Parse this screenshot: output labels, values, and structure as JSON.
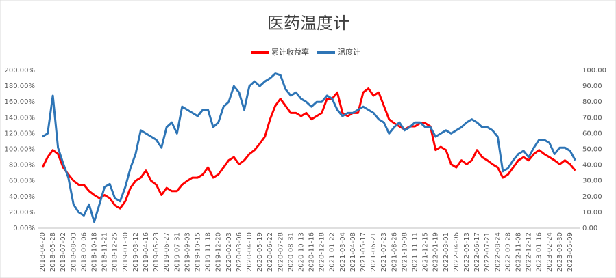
{
  "chart_data": {
    "type": "line",
    "title": "医药温度计",
    "categories": [
      "2018-04-20",
      null,
      "2018-05-28",
      null,
      "2018-07-02",
      null,
      "2018-08-03",
      null,
      "2018-09-06",
      null,
      "2018-10-18",
      null,
      "2018-11-21",
      null,
      "2018-12-25",
      null,
      "2019-01-30",
      null,
      "2019-03-12",
      null,
      "2019-04-16",
      null,
      "2019-05-23",
      null,
      "2019-06-27",
      null,
      "2019-07-31",
      null,
      "2019-09-03",
      null,
      "2019-10-15",
      null,
      "2019-11-18",
      null,
      "2019-12-20",
      null,
      "2020-02-03",
      null,
      "2020-03-06",
      null,
      "2020-04-10",
      null,
      "2020-05-19",
      null,
      "2020-06-22",
      null,
      "2020-07-28",
      null,
      "2020-08-31",
      null,
      "2020-10-13",
      null,
      "2020-11-16",
      null,
      "2020-12-18",
      null,
      "2021-01-22",
      null,
      "2021-03-04",
      null,
      "2021-04-08",
      null,
      "2021-05-17",
      null,
      "2021-06-21",
      null,
      "2021-07-23",
      null,
      "2021-08-26",
      null,
      "2021-10-08",
      null,
      "2021-11-11",
      null,
      "2021-12-15",
      null,
      "2022-01-19",
      null,
      "2022-03-01",
      null,
      "2022-04-06",
      null,
      "2022-05-13",
      null,
      "2022-06-17",
      null,
      "2022-07-21",
      null,
      "2022-08-24",
      null,
      "2022-09-28",
      null,
      "2022-11-08",
      null,
      "2022-12-12",
      null,
      "2023-01-16",
      null,
      "2023-02-24",
      null,
      "2023-03-30",
      null,
      "2023-05-09",
      null
    ],
    "series": [
      {
        "name": "累计收益率",
        "color": "#ff0000",
        "axis": "y",
        "values": [
          77,
          90,
          99,
          94,
          77,
          68,
          60,
          55,
          55,
          47,
          42,
          38,
          42,
          38,
          29,
          25,
          34,
          51,
          60,
          64,
          73,
          60,
          55,
          42,
          51,
          47,
          47,
          55,
          60,
          64,
          64,
          68,
          77,
          64,
          68,
          77,
          86,
          90,
          81,
          86,
          94,
          99,
          107,
          116,
          138,
          155,
          164,
          155,
          146,
          146,
          142,
          146,
          138,
          142,
          146,
          164,
          164,
          172,
          146,
          142,
          146,
          146,
          172,
          177,
          168,
          172,
          155,
          138,
          133,
          129,
          125,
          129,
          129,
          133,
          133,
          129,
          99,
          103,
          99,
          81,
          77,
          86,
          81,
          86,
          99,
          90,
          86,
          81,
          77,
          64,
          68,
          77,
          86,
          90,
          86,
          94,
          99,
          94,
          90,
          86,
          81,
          86,
          81,
          73
        ]
      },
      {
        "name": "温度计",
        "color": "#2e75b6",
        "axis": "y2",
        "values": [
          58,
          60,
          84,
          51,
          41,
          32,
          15,
          10,
          8,
          15,
          4,
          15,
          26,
          28,
          19,
          17,
          26,
          38,
          47,
          62,
          60,
          58,
          56,
          51,
          64,
          67,
          60,
          77,
          75,
          73,
          71,
          75,
          75,
          64,
          67,
          77,
          80,
          90,
          86,
          75,
          90,
          93,
          90,
          93,
          95,
          98,
          97,
          88,
          84,
          86,
          82,
          80,
          77,
          80,
          80,
          84,
          82,
          75,
          71,
          73,
          73,
          75,
          77,
          75,
          73,
          69,
          67,
          60,
          64,
          67,
          62,
          64,
          67,
          67,
          64,
          64,
          58,
          60,
          62,
          60,
          62,
          64,
          67,
          69,
          67,
          64,
          64,
          62,
          58,
          36,
          38,
          43,
          47,
          49,
          45,
          51,
          56,
          56,
          54,
          47,
          51,
          51,
          49,
          43
        ]
      }
    ],
    "ylim": [
      0,
      200
    ],
    "yticks": [
      {
        "value": 0,
        "label": "0.00%"
      },
      {
        "value": 20,
        "label": "20.00%"
      },
      {
        "value": 40,
        "label": "40.00%"
      },
      {
        "value": 60,
        "label": "60.00%"
      },
      {
        "value": 80,
        "label": "80.00%"
      },
      {
        "value": 100,
        "label": "100.00%"
      },
      {
        "value": 120,
        "label": "120.00%"
      },
      {
        "value": 140,
        "label": "140.00%"
      },
      {
        "value": 160,
        "label": "160.00%"
      },
      {
        "value": 180,
        "label": "180.00%"
      },
      {
        "value": 200,
        "label": "200.00%"
      }
    ],
    "y2lim": [
      0,
      100
    ],
    "y2ticks": [
      {
        "value": 0,
        "label": "0.00"
      },
      {
        "value": 10,
        "label": "10.00"
      },
      {
        "value": 20,
        "label": "20.00"
      },
      {
        "value": 30,
        "label": "30.00"
      },
      {
        "value": 40,
        "label": "40.00"
      },
      {
        "value": 50,
        "label": "50.00"
      },
      {
        "value": 60,
        "label": "60.00"
      },
      {
        "value": 70,
        "label": "70.00"
      },
      {
        "value": 80,
        "label": "80.00"
      },
      {
        "value": 90,
        "label": "90.00"
      },
      {
        "value": 100,
        "label": "100.00"
      }
    ],
    "grid": false,
    "legend": "top"
  }
}
